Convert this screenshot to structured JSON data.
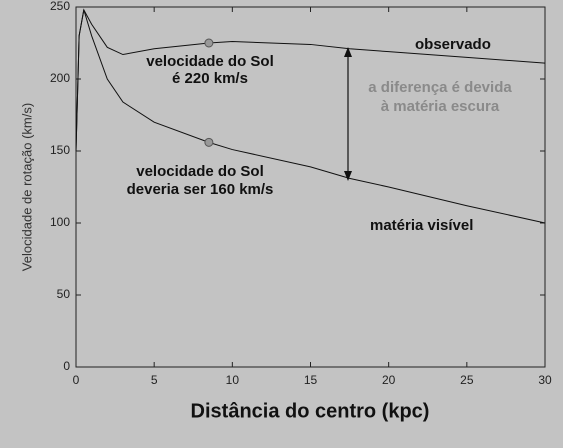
{
  "chart_data": {
    "type": "line",
    "xlabel": "Distância do centro (kpc)",
    "ylabel": "Velocidade de rotação (km/s)",
    "x": [
      0,
      0.2,
      0.5,
      1,
      2,
      3,
      5,
      8.5,
      10,
      15,
      17.5,
      20,
      25,
      30
    ],
    "series": [
      {
        "name": "observado",
        "color": "#111111",
        "values": [
          150,
          230,
          248,
          238,
          222,
          217,
          221,
          225,
          226,
          224,
          221,
          219,
          215,
          211
        ]
      },
      {
        "name": "matéria visível",
        "color": "#111111",
        "values": [
          150,
          230,
          248,
          230,
          200,
          184,
          170,
          156,
          151,
          139,
          131,
          125,
          112,
          100
        ]
      }
    ],
    "annotations": [
      [
        "velocidade do Sol",
        "é 220 km/s"
      ],
      [
        "velocidade do Sol",
        "deveria ser 160 km/s"
      ],
      [
        "a diferença é devida",
        "à matéria escura"
      ]
    ],
    "xlim": [
      0,
      30
    ],
    "xticks": [
      0,
      5,
      10,
      15,
      20,
      25,
      30
    ],
    "ylim": [
      0,
      250
    ],
    "yticks": [
      0,
      50,
      100,
      150,
      200,
      250
    ]
  }
}
